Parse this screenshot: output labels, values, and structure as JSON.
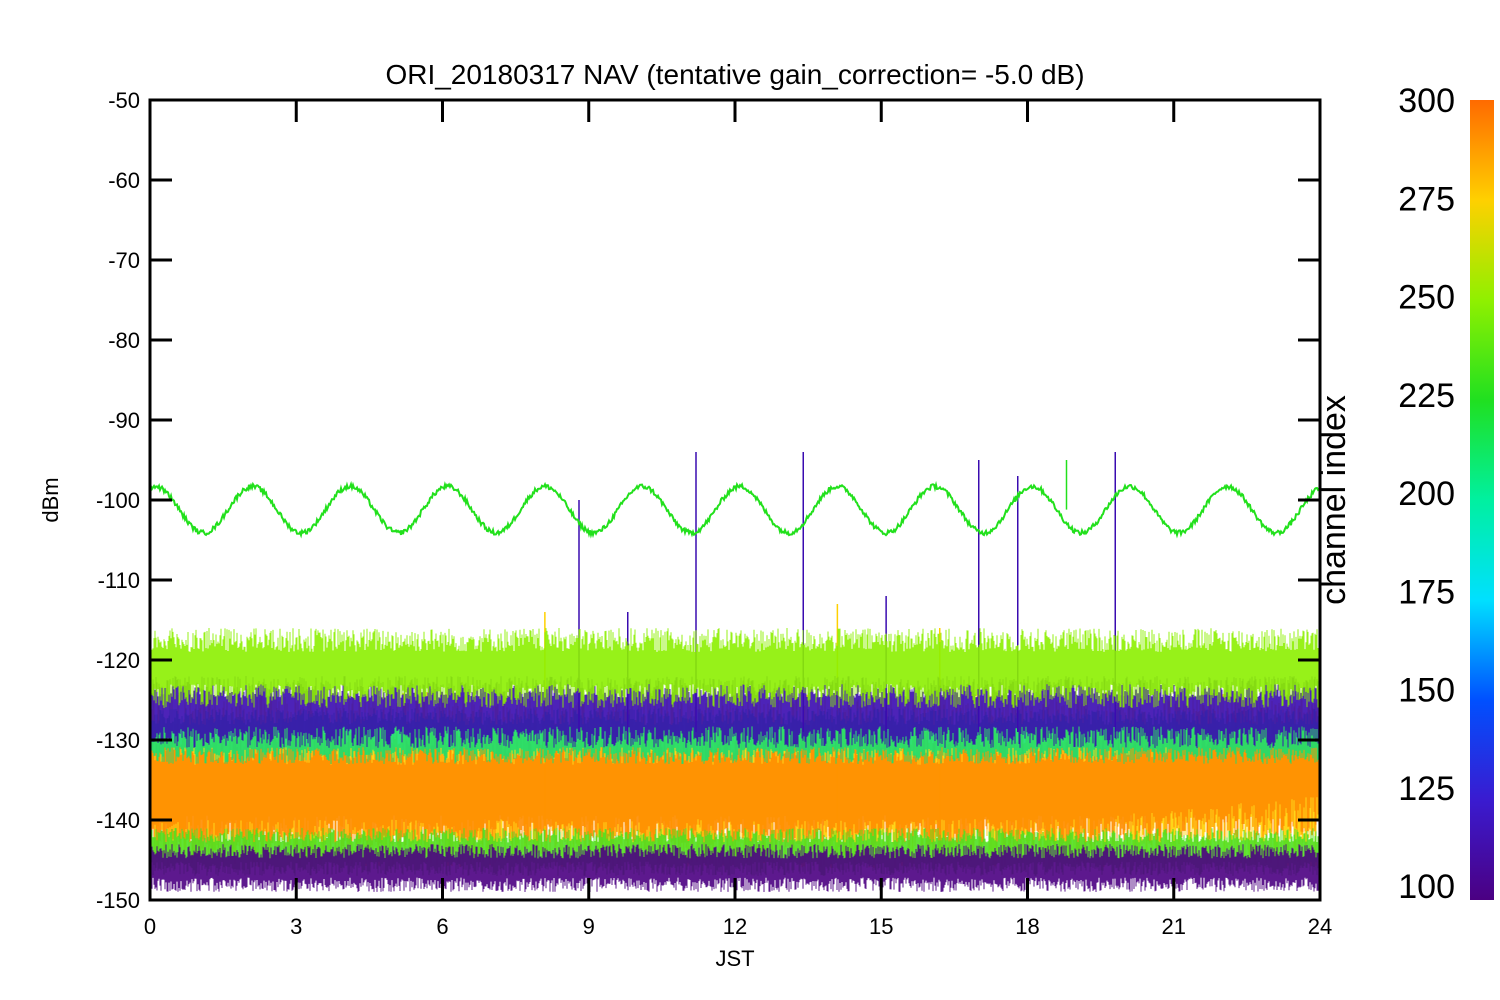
{
  "chart_data": {
    "type": "line",
    "title": "ORI_20180317 NAV (tentative gain_correction= -5.0 dB)",
    "xlabel": "JST",
    "ylabel": "dBm",
    "xlim": [
      0,
      24
    ],
    "ylim": [
      -150,
      -50
    ],
    "xticks": [
      0,
      3,
      6,
      9,
      12,
      15,
      18,
      21,
      24
    ],
    "xtick_labels": [
      "0",
      "3",
      "6",
      "9",
      "12",
      "15",
      "18",
      "21",
      "24"
    ],
    "yticks": [
      -50,
      -60,
      -70,
      -80,
      -90,
      -100,
      -110,
      -120,
      -130,
      -140,
      -150
    ],
    "ytick_labels": [
      "-50",
      "-60",
      "-70",
      "-80",
      "-90",
      "-100",
      "-110",
      "-120",
      "-130",
      "-140",
      "-150"
    ],
    "colorbar": {
      "title": "channel index",
      "range": [
        100,
        300
      ],
      "ticks": [
        100,
        125,
        150,
        175,
        200,
        225,
        250,
        275,
        300
      ],
      "tick_labels": [
        "100",
        "125",
        "150",
        "175",
        "200",
        "225",
        "250",
        "275",
        "300"
      ],
      "colormap": "rainbow"
    },
    "series": [
      {
        "channel_index": 220,
        "color": "#22e01c",
        "kind": "sinusoid",
        "center_dbm": -101.2,
        "amplitude_db": 2.9,
        "period_hours": 2.0,
        "peak_hours": [
          0.1,
          2.1,
          4.1,
          6.1,
          8.1,
          10.1,
          12.1,
          14.1,
          16.1,
          18.1,
          20.1,
          22.1
        ],
        "trough_hours": [
          1.1,
          3.1,
          5.1,
          7.1,
          9.1,
          11.1,
          13.1,
          15.1,
          17.1,
          19.1,
          21.1,
          23.1
        ],
        "spikes": [
          {
            "x": 18.8,
            "y": -95
          }
        ]
      },
      {
        "channel_index": 255,
        "color": "#8cf000",
        "kind": "noise_band",
        "band_dbm": [
          -126,
          -116
        ]
      },
      {
        "channel_index": 120,
        "color": "#3a0bb0",
        "kind": "noise_band",
        "band_dbm": [
          -131,
          -122
        ],
        "spikes": [
          {
            "x": 8.8,
            "y": -100
          },
          {
            "x": 9.8,
            "y": -114
          },
          {
            "x": 11.2,
            "y": -94
          },
          {
            "x": 13.4,
            "y": -94
          },
          {
            "x": 17.0,
            "y": -95
          },
          {
            "x": 17.8,
            "y": -97
          },
          {
            "x": 19.8,
            "y": -94
          },
          {
            "x": 15.1,
            "y": -112
          }
        ]
      },
      {
        "channel_index": 200,
        "color": "#18e070",
        "kind": "noise_band",
        "band_dbm": [
          -133,
          -126
        ]
      },
      {
        "channel_index": 290,
        "color": "#ff8c00",
        "kind": "noise_band",
        "band_dbm": [
          -145,
          -128
        ],
        "center_dbm": -137,
        "late_center_dbm": -134
      },
      {
        "channel_index": 270,
        "color": "#ffd000",
        "kind": "noise_band",
        "band_dbm": [
          -146,
          -124
        ],
        "spikes": [
          {
            "x": 8.1,
            "y": -114
          },
          {
            "x": 14.1,
            "y": -113
          },
          {
            "x": 16.2,
            "y": -116
          }
        ]
      },
      {
        "channel_index": 240,
        "color": "#50e020",
        "kind": "noise_band",
        "band_dbm": [
          -147,
          -141
        ]
      },
      {
        "channel_index": 110,
        "color": "#4b0082",
        "kind": "noise_band",
        "band_dbm": [
          -149,
          -143
        ]
      }
    ]
  }
}
